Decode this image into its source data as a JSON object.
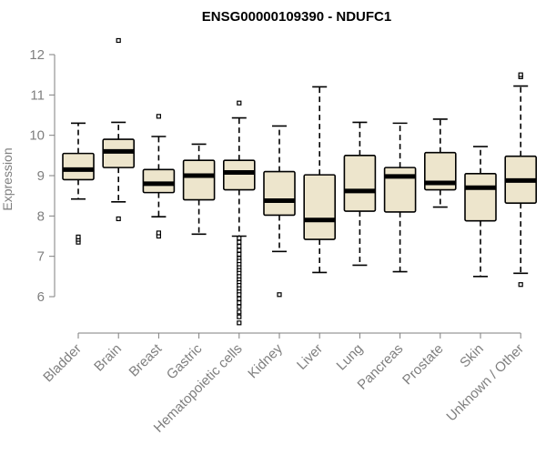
{
  "chart_data": {
    "type": "boxplot",
    "title": "ENSG00000109390 - NDUFC1",
    "xlabel": "",
    "ylabel": "Expression",
    "ylim": [
      5.2,
      12.4
    ],
    "yticks": [
      6,
      7,
      8,
      9,
      10,
      11,
      12
    ],
    "categories": [
      "Bladder",
      "Brain",
      "Breast",
      "Gastric",
      "Hematopoietic cells",
      "Kidney",
      "Liver",
      "Lung",
      "Pancreas",
      "Prostate",
      "Skin",
      "Unknown / Other"
    ],
    "boxes": [
      {
        "min": 8.42,
        "q1": 8.9,
        "median": 9.15,
        "q3": 9.55,
        "max": 10.3,
        "outliers": [
          7.35,
          7.42,
          7.48
        ]
      },
      {
        "min": 8.35,
        "q1": 9.2,
        "median": 9.6,
        "q3": 9.9,
        "max": 10.32,
        "outliers": [
          7.93,
          12.35
        ]
      },
      {
        "min": 7.98,
        "q1": 8.58,
        "median": 8.8,
        "q3": 9.15,
        "max": 9.97,
        "outliers": [
          7.5,
          7.58,
          10.47
        ]
      },
      {
        "min": 7.55,
        "q1": 8.4,
        "median": 9.0,
        "q3": 9.38,
        "max": 9.78,
        "outliers": []
      },
      {
        "min": 7.5,
        "q1": 8.65,
        "median": 9.08,
        "q3": 9.38,
        "max": 10.43,
        "outliers": [
          10.8,
          7.45,
          7.35,
          7.25,
          7.15,
          7.05,
          6.95,
          6.88,
          6.8,
          6.72,
          6.65,
          6.58,
          6.5,
          6.42,
          6.35,
          6.28,
          6.2,
          6.12,
          6.05,
          5.95,
          5.85,
          5.75,
          5.62,
          5.5,
          5.35
        ]
      },
      {
        "min": 7.12,
        "q1": 8.02,
        "median": 8.38,
        "q3": 9.1,
        "max": 10.23,
        "outliers": [
          6.05
        ]
      },
      {
        "min": 6.6,
        "q1": 7.42,
        "median": 7.9,
        "q3": 9.02,
        "max": 11.2,
        "outliers": []
      },
      {
        "min": 6.78,
        "q1": 8.12,
        "median": 8.62,
        "q3": 9.5,
        "max": 10.32,
        "outliers": []
      },
      {
        "min": 6.62,
        "q1": 8.1,
        "median": 8.98,
        "q3": 9.2,
        "max": 10.3,
        "outliers": []
      },
      {
        "min": 8.22,
        "q1": 8.65,
        "median": 8.82,
        "q3": 9.57,
        "max": 10.4,
        "outliers": []
      },
      {
        "min": 6.5,
        "q1": 7.88,
        "median": 8.7,
        "q3": 9.05,
        "max": 9.72,
        "outliers": []
      },
      {
        "min": 6.58,
        "q1": 8.32,
        "median": 8.88,
        "q3": 9.48,
        "max": 11.22,
        "outliers": [
          6.3,
          11.45,
          11.5
        ]
      }
    ],
    "colors": {
      "box_fill": "#ede5cc",
      "box_stroke": "#000000",
      "median": "#000000",
      "axis": "#7f7f7f",
      "tick_label": "#7f7f7f",
      "title": "#000000"
    }
  }
}
